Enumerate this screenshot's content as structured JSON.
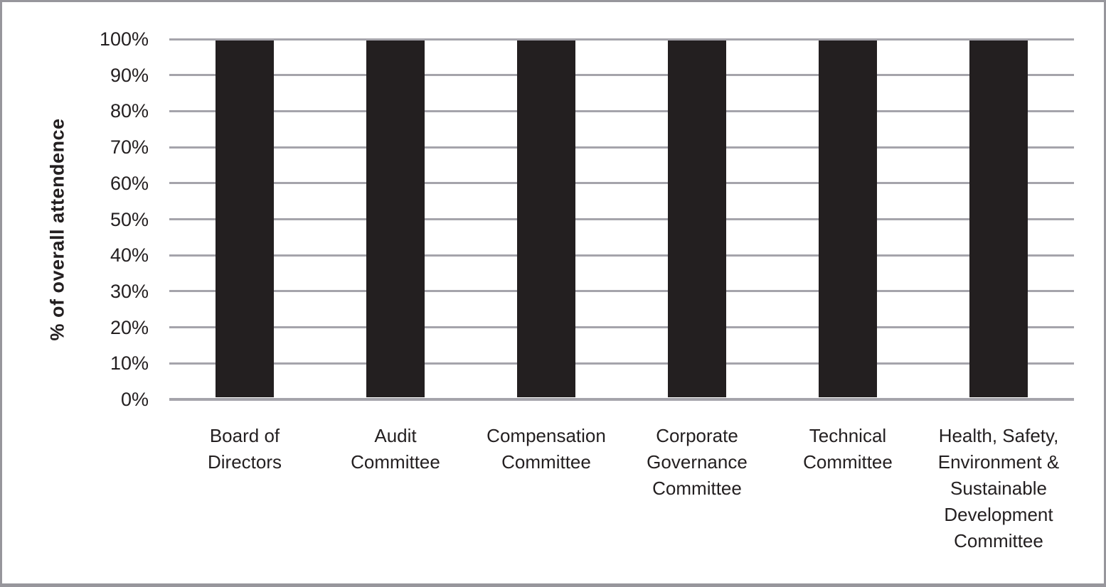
{
  "chart_data": {
    "type": "bar",
    "title": "",
    "xlabel": "",
    "ylabel": "% of overall attendence",
    "categories": [
      "Board of\nDirectors",
      "Audit\nCommittee",
      "Compensation\nCommittee",
      "Corporate\nGovernance\nCommittee",
      "Technical\nCommittee",
      "Health, Safety,\nEnvironment &\nSustainable\nDevelopment\nCommittee"
    ],
    "values": [
      100,
      100,
      100,
      100,
      100,
      100
    ],
    "ylim": [
      0,
      100
    ],
    "yticks": [
      0,
      10,
      20,
      30,
      40,
      50,
      60,
      70,
      80,
      90,
      100
    ],
    "ytick_suffix": "%",
    "grid": "horizontal",
    "legend": "none",
    "colors": {
      "bar": "#231f20",
      "gridline": "#a5a4ab",
      "text": "#231f20",
      "frame_border": "#97969c",
      "background": "#ffffff"
    }
  }
}
